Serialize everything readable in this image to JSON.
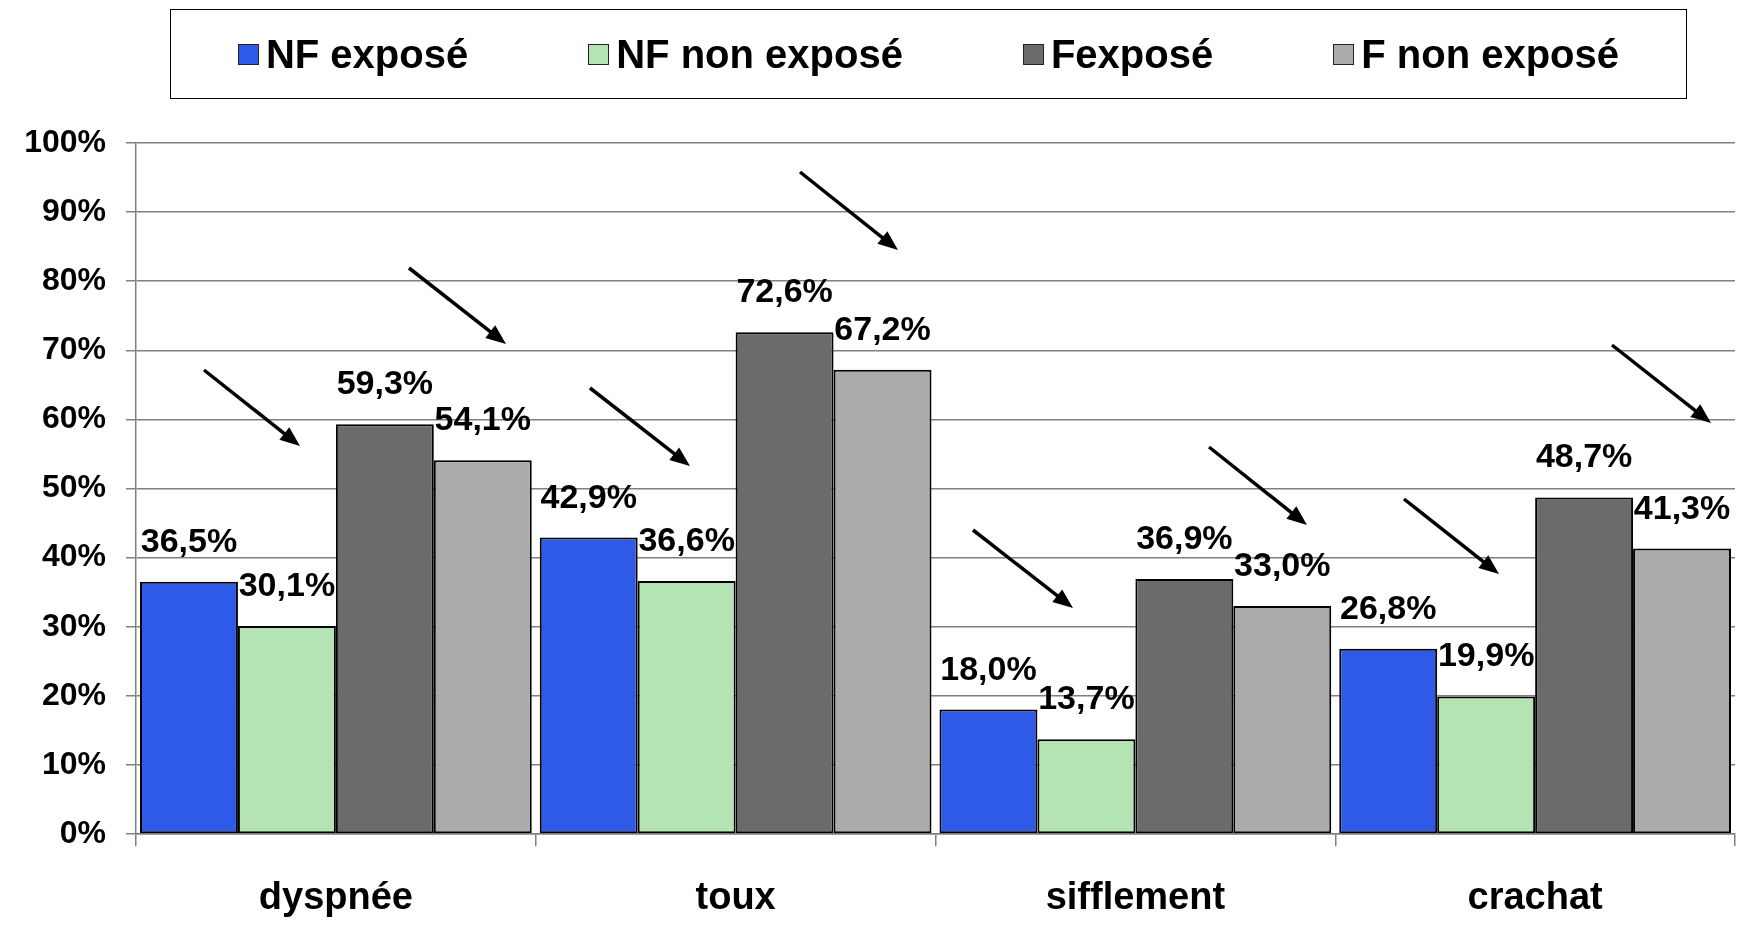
{
  "chart_data": {
    "type": "bar",
    "categories": [
      "dyspnée",
      "toux",
      "sifflement",
      "crachat"
    ],
    "series": [
      {
        "name": "NF exposé",
        "color": "#2f5ae8",
        "values": [
          36.5,
          42.9,
          18.0,
          26.8
        ],
        "value_labels": [
          "36,5%",
          "42,9%",
          "18,0%",
          "26,8%"
        ]
      },
      {
        "name": "NF non exposé",
        "color": "#b4e4b4",
        "values": [
          30.1,
          36.6,
          13.7,
          19.9
        ],
        "value_labels": [
          "30,1%",
          "36,6%",
          "13,7%",
          "19,9%"
        ]
      },
      {
        "name": "Fexposé",
        "color": "#6b6b6b",
        "values": [
          59.3,
          72.6,
          36.9,
          48.7
        ],
        "value_labels": [
          "59,3%",
          "72,6%",
          "36,9%",
          "48,7%"
        ]
      },
      {
        "name": "F non exposé",
        "color": "#ababab",
        "values": [
          54.1,
          67.2,
          33.0,
          41.3
        ],
        "value_labels": [
          "54,1%",
          "67,2%",
          "33,0%",
          "41,3%"
        ]
      }
    ],
    "ylim": [
      0,
      100
    ],
    "yticks": [
      {
        "value": 0,
        "label": "0%"
      },
      {
        "value": 10,
        "label": "10%"
      },
      {
        "value": 20,
        "label": "20%"
      },
      {
        "value": 30,
        "label": "30%"
      },
      {
        "value": 40,
        "label": "40%"
      },
      {
        "value": 50,
        "label": "50%"
      },
      {
        "value": 60,
        "label": "60%"
      },
      {
        "value": 70,
        "label": "70%"
      },
      {
        "value": 80,
        "label": "80%"
      },
      {
        "value": 90,
        "label": "90%"
      },
      {
        "value": 100,
        "label": "100%"
      }
    ],
    "grid": "y",
    "legend": "top"
  }
}
